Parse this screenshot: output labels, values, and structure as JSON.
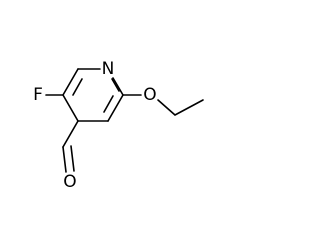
{
  "atoms": [
    {
      "label": "N"
    },
    {
      "label": "F"
    },
    {
      "label": "O"
    },
    {
      "label": "O"
    }
  ]
}
